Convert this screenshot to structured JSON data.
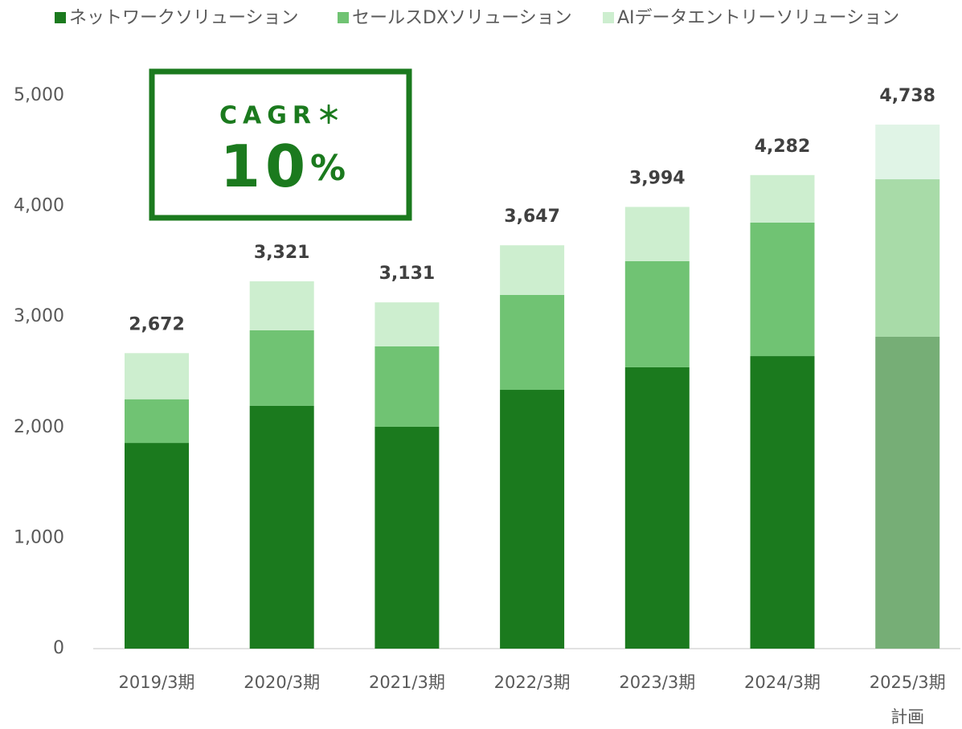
{
  "chart_data": {
    "type": "stacked_bar",
    "categories": [
      "2019/3期",
      "2020/3期",
      "2021/3期",
      "2022/3期",
      "2023/3期",
      "2024/3期",
      "2025/3期"
    ],
    "plan_note": "計画",
    "series": [
      {
        "name": "ネットワークソリューション",
        "color": "#1b7a1e",
        "colors": [
          "#1b7a1e",
          "#1b7a1e",
          "#1b7a1e",
          "#1b7a1e",
          "#1b7a1e",
          "#1b7a1e",
          "#76ae76"
        ],
        "values": [
          1860,
          2195,
          2006,
          2340,
          2544,
          2645,
          2820
        ]
      },
      {
        "name": "セールスDXソリューション",
        "color": "#70c373",
        "colors": [
          "#70c373",
          "#70c373",
          "#70c373",
          "#70c373",
          "#70c373",
          "#70c373",
          "#a8dba8"
        ],
        "values": [
          395,
          683,
          727,
          858,
          959,
          1207,
          1424
        ]
      },
      {
        "name": "AIデータエントリーソリューション",
        "color": "#cdeecf",
        "colors": [
          "#cdeecf",
          "#cdeecf",
          "#cdeecf",
          "#cdeecf",
          "#cdeecf",
          "#cdeecf",
          "#e0f4e6"
        ],
        "values": [
          417,
          443,
          398,
          449,
          491,
          430,
          494
        ]
      }
    ],
    "totals": [
      2672,
      3321,
      3131,
      3647,
      3994,
      4282,
      4738
    ],
    "total_labels": [
      "2,672",
      "3,321",
      "3,131",
      "3,647",
      "3,994",
      "4,282",
      "4,738"
    ],
    "ylim": [
      0,
      5000
    ],
    "yticks": [
      0,
      {
        "value": 1000,
        "label": "1,000"
      },
      {
        "value": 2000,
        "label": "2,000"
      },
      {
        "value": 3000,
        "label": "3,000"
      },
      {
        "value": 4000,
        "label": "4,000"
      },
      {
        "value": 5000,
        "label": "5,000"
      }
    ],
    "cagr": {
      "label": "CAGR＊",
      "value": "10",
      "unit": "%",
      "color": "#1b7a1e"
    }
  }
}
